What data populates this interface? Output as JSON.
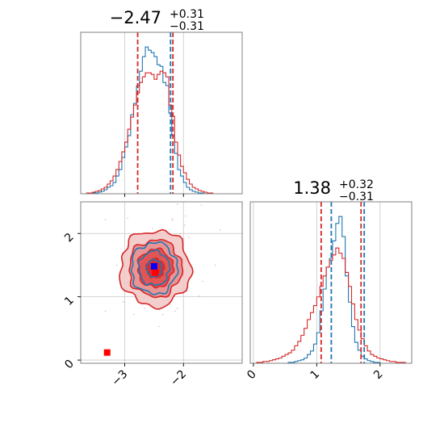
{
  "chart_data": [
    {
      "type": "histogram",
      "panel": "top-left",
      "parameter_index": 0,
      "title": {
        "main": "−2.47",
        "sup": "+0.31",
        "sub": "−0.31"
      },
      "xlim": [
        -3.75,
        -1.0
      ],
      "grid": true,
      "show_x_tick_labels": false,
      "bin_edges": [
        -3.75,
        -3.7,
        -3.65,
        -3.6,
        -3.55,
        -3.5,
        -3.45,
        -3.4,
        -3.35,
        -3.3,
        -3.25,
        -3.2,
        -3.15,
        -3.1,
        -3.05,
        -3.0,
        -2.95,
        -2.9,
        -2.85,
        -2.8,
        -2.75,
        -2.7,
        -2.65,
        -2.6,
        -2.55,
        -2.5,
        -2.45,
        -2.4,
        -2.35,
        -2.3,
        -2.25,
        -2.2,
        -2.15,
        -2.1,
        -2.05,
        -2.0,
        -1.95,
        -1.9,
        -1.85,
        -1.8,
        -1.75,
        -1.7,
        -1.65,
        -1.6,
        -1.55,
        -1.5,
        -1.45,
        -1.4,
        -1.35,
        -1.3,
        -1.25,
        -1.2,
        -1.15,
        -1.1,
        -1.05,
        -1.0
      ],
      "series": [
        {
          "color": "#1f77b4",
          "counts": [
            0,
            0,
            0,
            0,
            1,
            1,
            2,
            3,
            5,
            8,
            10,
            14,
            22,
            30,
            45,
            58,
            72,
            98,
            112,
            134,
            152,
            170,
            182,
            178,
            175,
            170,
            160,
            158,
            138,
            134,
            100,
            72,
            50,
            30,
            22,
            14,
            8,
            5,
            3,
            2,
            1,
            1,
            0,
            0,
            0,
            0,
            0,
            0,
            0,
            0,
            0,
            0,
            0,
            0,
            0
          ]
        },
        {
          "color": "#d62728",
          "counts": [
            0,
            0,
            1,
            1,
            2,
            3,
            4,
            6,
            8,
            12,
            16,
            22,
            30,
            40,
            52,
            64,
            80,
            95,
            110,
            125,
            138,
            145,
            150,
            150,
            148,
            142,
            148,
            152,
            150,
            145,
            110,
            96,
            64,
            48,
            34,
            26,
            18,
            12,
            8,
            6,
            4,
            3,
            2,
            1,
            1,
            0,
            0,
            0,
            0,
            0,
            0,
            0,
            0,
            0,
            0
          ]
        }
      ],
      "vlines": [
        {
          "x": -2.78,
          "color": "#d62728"
        },
        {
          "x": -2.22,
          "color": "#1f77b4"
        },
        {
          "x": -2.18,
          "color": "#d62728"
        }
      ]
    },
    {
      "type": "contour",
      "panel": "bottom-left",
      "xlim": [
        -3.75,
        -1.0
      ],
      "ylim": [
        -0.05,
        2.5
      ],
      "xticks": [
        -3,
        -2
      ],
      "yticks": [
        0,
        1,
        2
      ],
      "grid": true,
      "series": [
        {
          "color": "#1f77b4",
          "center": [
            -2.5,
            1.45
          ],
          "sigma": [
            0.26,
            0.27
          ],
          "levels": [
            0.5,
            1.0,
            1.5
          ],
          "filled": false
        },
        {
          "color": "#d62728",
          "center": [
            -2.48,
            1.45
          ],
          "sigma": [
            0.3,
            0.3
          ],
          "levels": [
            0.5,
            1.0,
            1.5,
            2.0
          ],
          "filled": true
        }
      ],
      "markers": [
        {
          "x": -2.5,
          "y": 1.48,
          "color": "#0000ff"
        },
        {
          "x": -2.48,
          "y": 1.38,
          "color": "#ff0000"
        },
        {
          "x": -3.3,
          "y": 0.12,
          "color": "#ff0000"
        }
      ]
    },
    {
      "type": "histogram",
      "panel": "bottom-right",
      "parameter_index": 1,
      "title": {
        "main": "1.38",
        "sup": "+0.32",
        "sub": "−0.31"
      },
      "xlim": [
        -0.05,
        2.5
      ],
      "xticks": [
        0,
        1,
        2
      ],
      "grid": true,
      "bin_edges": [
        -0.05,
        0.0,
        0.05,
        0.1,
        0.15,
        0.2,
        0.25,
        0.3,
        0.35,
        0.4,
        0.45,
        0.5,
        0.55,
        0.6,
        0.65,
        0.7,
        0.75,
        0.8,
        0.85,
        0.9,
        0.95,
        1.0,
        1.05,
        1.1,
        1.15,
        1.2,
        1.25,
        1.3,
        1.35,
        1.4,
        1.45,
        1.5,
        1.55,
        1.6,
        1.65,
        1.7,
        1.75,
        1.8,
        1.85,
        1.9,
        1.95,
        2.0,
        2.05,
        2.1,
        2.15,
        2.2,
        2.25,
        2.3,
        2.35,
        2.4,
        2.45,
        2.5
      ],
      "series": [
        {
          "color": "#1f77b4",
          "counts": [
            0,
            0,
            0,
            0,
            0,
            0,
            0,
            0,
            0,
            0,
            0,
            0,
            1,
            1,
            2,
            3,
            4,
            6,
            10,
            14,
            22,
            35,
            60,
            85,
            110,
            120,
            140,
            160,
            168,
            145,
            100,
            70,
            42,
            24,
            15,
            8,
            5,
            3,
            2,
            1,
            1,
            0,
            0,
            0,
            0,
            0,
            0,
            0,
            0,
            0,
            0
          ]
        },
        {
          "color": "#d62728",
          "counts": [
            0,
            0,
            1,
            1,
            2,
            2,
            3,
            4,
            5,
            6,
            8,
            10,
            12,
            15,
            20,
            25,
            32,
            40,
            50,
            58,
            66,
            76,
            88,
            100,
            110,
            118,
            124,
            132,
            126,
            120,
            104,
            88,
            68,
            50,
            38,
            28,
            20,
            14,
            10,
            8,
            6,
            5,
            4,
            3,
            2,
            2,
            1,
            1,
            1,
            0,
            0
          ]
        }
      ],
      "vlines": [
        {
          "x": 1.07,
          "color": "#d62728"
        },
        {
          "x": 1.23,
          "color": "#1f77b4"
        },
        {
          "x": 1.7,
          "color": "#d62728"
        },
        {
          "x": 1.75,
          "color": "#1f77b4"
        }
      ]
    }
  ]
}
